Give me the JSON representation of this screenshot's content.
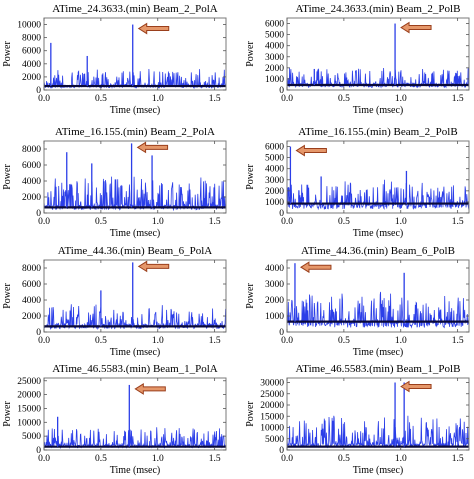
{
  "colors": {
    "signal": "#2b3ee8",
    "baseline": "#0a0a3a",
    "arrow_fill": "#e5976a",
    "arrow_stroke": "#9a3f1c",
    "frame": "#7a7a7a"
  },
  "chart_data": [
    {
      "type": "line",
      "title": "ATime_24.3633.(min) Beam_2_PolA",
      "xlabel": "Time (msec)",
      "ylabel": "Power",
      "xlim": [
        0,
        1.6
      ],
      "ylim": [
        0,
        11000
      ],
      "xticks": [
        "0.0",
        "0.5",
        "1.0",
        "1.5"
      ],
      "yticks": [
        "0",
        "2000",
        "4000",
        "6000",
        "8000",
        "10000"
      ],
      "noise_level": 2500,
      "noise_floor": 800,
      "baseline": 600,
      "spikes": [
        {
          "x": 0.06,
          "y": 7200
        },
        {
          "x": 0.38,
          "y": 5200
        },
        {
          "x": 0.78,
          "y": 10000
        }
      ],
      "annotation": "arrow pointing to peak at 0.78 msec"
    },
    {
      "type": "line",
      "title": "ATime_24.3633.(min) Beam_2_PolB",
      "xlabel": "Time (msec)",
      "ylabel": "Power",
      "xlim": [
        0,
        1.6
      ],
      "ylim": [
        0,
        6500
      ],
      "xticks": [
        "0.0",
        "0.5",
        "1.0",
        "1.5"
      ],
      "yticks": [
        "0",
        "1000",
        "2000",
        "3000",
        "4000",
        "5000",
        "6000"
      ],
      "noise_level": 1500,
      "noise_floor": 600,
      "baseline": 450,
      "spikes": [
        {
          "x": 0.24,
          "y": 1900
        },
        {
          "x": 0.95,
          "y": 6000
        }
      ],
      "annotation": "arrow pointing to peak at 0.95 msec"
    },
    {
      "type": "line",
      "title": "ATime_16.155.(min) Beam_2_PolA",
      "xlabel": "Time (msec)",
      "ylabel": "Power",
      "xlim": [
        0,
        1.6
      ],
      "ylim": [
        0,
        9000
      ],
      "xticks": [
        "0.0",
        "0.5",
        "1.0",
        "1.5"
      ],
      "yticks": [
        "0",
        "2000",
        "4000",
        "6000",
        "8000"
      ],
      "noise_level": 3800,
      "noise_floor": 1000,
      "baseline": 700,
      "spikes": [
        {
          "x": 0.2,
          "y": 7600
        },
        {
          "x": 0.42,
          "y": 6200
        },
        {
          "x": 0.77,
          "y": 8700
        },
        {
          "x": 0.95,
          "y": 7200
        }
      ],
      "annotation": "arrow pointing to peak at 0.77 msec"
    },
    {
      "type": "line",
      "title": "ATime_16.155.(min) Beam_2_PolB",
      "xlabel": "Time (msec)",
      "ylabel": "Power",
      "xlim": [
        0,
        1.6
      ],
      "ylim": [
        0,
        6500
      ],
      "xticks": [
        "0.0",
        "0.5",
        "1.0",
        "1.5"
      ],
      "yticks": [
        "0",
        "1000",
        "2000",
        "3000",
        "4000",
        "5000",
        "6000"
      ],
      "noise_level": 2200,
      "noise_floor": 900,
      "baseline": 850,
      "spikes": [
        {
          "x": 0.03,
          "y": 6000
        },
        {
          "x": 0.3,
          "y": 3300
        },
        {
          "x": 1.05,
          "y": 3800
        }
      ],
      "annotation": "arrow pointing to peak at 0.03 msec"
    },
    {
      "type": "line",
      "title": "ATime_44.36.(min) Beam_6_PolA",
      "xlabel": "Time (msec)",
      "ylabel": "Power",
      "xlim": [
        0,
        1.6
      ],
      "ylim": [
        0,
        9000
      ],
      "xticks": [
        "0.0",
        "0.5",
        "1.0",
        "1.5"
      ],
      "yticks": [
        "0",
        "2000",
        "4000",
        "6000",
        "8000"
      ],
      "noise_level": 2600,
      "noise_floor": 1000,
      "baseline": 700,
      "spikes": [
        {
          "x": 0.5,
          "y": 5200
        },
        {
          "x": 0.78,
          "y": 8700
        }
      ],
      "annotation": "arrow pointing to peak at 0.78 msec"
    },
    {
      "type": "line",
      "title": "ATime_44.36.(min) Beam_6_PolB",
      "xlabel": "Time (msec)",
      "ylabel": "Power",
      "xlim": [
        0,
        1.6
      ],
      "ylim": [
        0,
        4500
      ],
      "xticks": [
        "0.0",
        "0.5",
        "1.0",
        "1.5"
      ],
      "yticks": [
        "0",
        "1000",
        "2000",
        "3000",
        "4000"
      ],
      "noise_level": 1900,
      "noise_floor": 700,
      "baseline": 650,
      "spikes": [
        {
          "x": 0.07,
          "y": 4300
        },
        {
          "x": 1.03,
          "y": 3700
        }
      ],
      "annotation": "arrow pointing to peak at 0.07 msec"
    },
    {
      "type": "line",
      "title": "ATime_46.5583.(min) Beam_1_PolA",
      "xlabel": "Time (msec)",
      "ylabel": "Power",
      "xlim": [
        0,
        1.6
      ],
      "ylim": [
        0,
        26000
      ],
      "xticks": [
        "0.0",
        "0.5",
        "1.0",
        "1.5"
      ],
      "yticks": [
        "0",
        "5000",
        "10000",
        "15000",
        "20000",
        "25000"
      ],
      "noise_level": 6500,
      "noise_floor": 2000,
      "baseline": 1200,
      "spikes": [
        {
          "x": 0.12,
          "y": 12000
        },
        {
          "x": 0.75,
          "y": 23500
        }
      ],
      "annotation": "arrow pointing to peak at 0.75 msec"
    },
    {
      "type": "line",
      "title": "ATime_46.5583.(min) Beam_1_PolB",
      "xlabel": "Time (msec)",
      "ylabel": "Power",
      "xlim": [
        0,
        1.6
      ],
      "ylim": [
        0,
        32000
      ],
      "xticks": [
        "0.0",
        "0.5",
        "1.0",
        "1.5"
      ],
      "yticks": [
        "0",
        "5000",
        "10000",
        "15000",
        "20000",
        "25000",
        "30000"
      ],
      "noise_level": 13000,
      "noise_floor": 3000,
      "baseline": 1500,
      "spikes": [
        {
          "x": 0.95,
          "y": 30000
        },
        {
          "x": 1.03,
          "y": 30000
        }
      ],
      "annotation": "arrow pointing to peaks at 0.95–1.03 msec"
    }
  ]
}
